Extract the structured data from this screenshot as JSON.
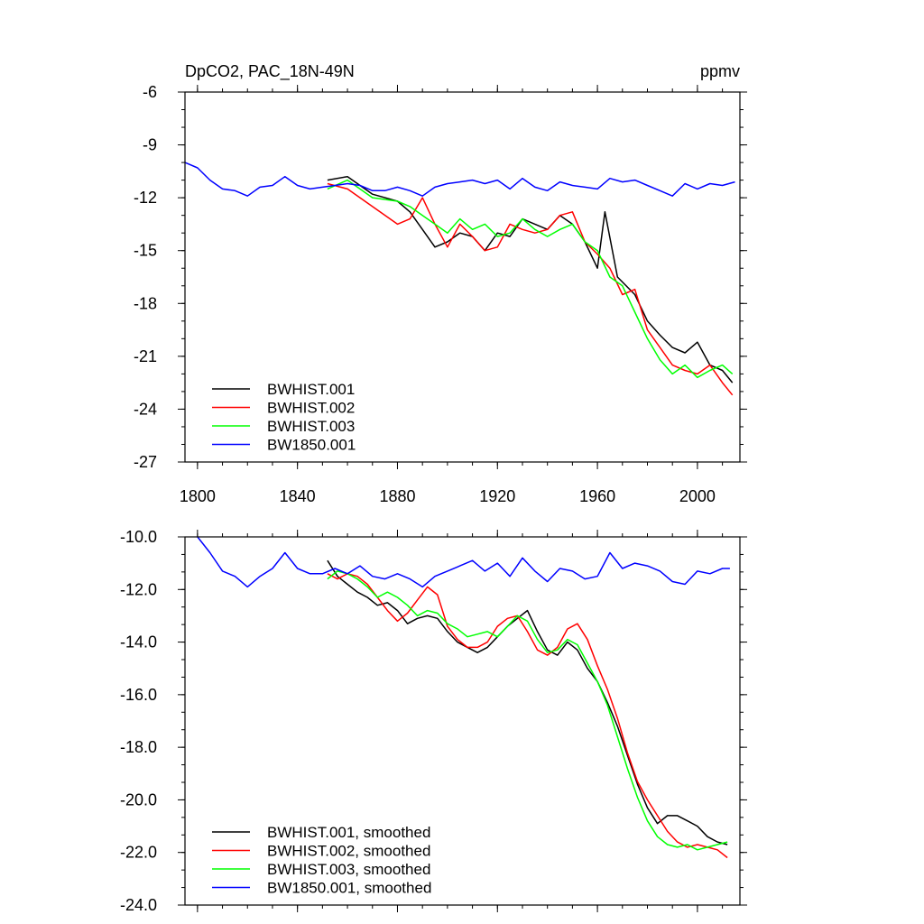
{
  "chart_data": [
    {
      "type": "line",
      "title_left": "DpCO2, PAC_18N-49N",
      "title_right": "ppmv",
      "xlabel": "",
      "ylabel": "",
      "xlim": [
        1795,
        2017
      ],
      "ylim": [
        -27,
        -6
      ],
      "x_ticks": [
        1800,
        1840,
        1880,
        1920,
        1960,
        2000
      ],
      "x_tick_labels": [
        "1800",
        "1840",
        "1880",
        "1920",
        "1960",
        "2000"
      ],
      "y_ticks": [
        -6,
        -9,
        -12,
        -15,
        -18,
        -21,
        -24,
        -27
      ],
      "y_tick_labels": [
        "-6",
        "-9",
        "-12",
        "-15",
        "-18",
        "-21",
        "-24",
        "-27"
      ],
      "legend_position": "bottom-left",
      "series": [
        {
          "name": "BWHIST.001",
          "color": "#000000",
          "x": [
            1852,
            1860,
            1870,
            1880,
            1885,
            1890,
            1895,
            1900,
            1905,
            1910,
            1915,
            1920,
            1925,
            1930,
            1935,
            1940,
            1945,
            1950,
            1955,
            1960,
            1963,
            1968,
            1975,
            1980,
            1985,
            1990,
            1995,
            2000,
            2005,
            2010,
            2014
          ],
          "y": [
            -11.0,
            -10.8,
            -11.8,
            -12.2,
            -12.8,
            -13.8,
            -14.8,
            -14.5,
            -14.0,
            -14.2,
            -15.0,
            -14.0,
            -14.2,
            -13.2,
            -13.5,
            -13.8,
            -13.0,
            -13.5,
            -14.5,
            -16.0,
            -12.8,
            -16.5,
            -17.5,
            -19.0,
            -19.8,
            -20.5,
            -20.8,
            -20.2,
            -21.5,
            -21.8,
            -22.5
          ]
        },
        {
          "name": "BWHIST.002",
          "color": "#ff0000",
          "x": [
            1852,
            1860,
            1870,
            1880,
            1885,
            1890,
            1895,
            1900,
            1905,
            1910,
            1915,
            1920,
            1925,
            1930,
            1935,
            1940,
            1945,
            1950,
            1955,
            1960,
            1965,
            1970,
            1975,
            1980,
            1985,
            1990,
            1995,
            2000,
            2005,
            2010,
            2014
          ],
          "y": [
            -11.2,
            -11.5,
            -12.5,
            -13.5,
            -13.2,
            -12.0,
            -13.5,
            -14.8,
            -13.5,
            -14.2,
            -15.0,
            -14.8,
            -13.5,
            -13.8,
            -14.0,
            -13.8,
            -13.0,
            -12.8,
            -14.5,
            -15.2,
            -16.0,
            -17.5,
            -17.2,
            -19.5,
            -20.5,
            -21.5,
            -21.8,
            -22.0,
            -21.5,
            -22.5,
            -23.2
          ]
        },
        {
          "name": "BWHIST.003",
          "color": "#00ff00",
          "x": [
            1852,
            1860,
            1870,
            1880,
            1885,
            1890,
            1895,
            1900,
            1905,
            1910,
            1915,
            1920,
            1925,
            1930,
            1935,
            1940,
            1945,
            1950,
            1955,
            1960,
            1965,
            1970,
            1975,
            1980,
            1985,
            1990,
            1995,
            2000,
            2005,
            2010,
            2014
          ],
          "y": [
            -11.5,
            -11.0,
            -12.0,
            -12.2,
            -12.5,
            -13.0,
            -13.5,
            -14.0,
            -13.2,
            -13.8,
            -13.5,
            -14.2,
            -14.0,
            -13.2,
            -13.8,
            -14.2,
            -13.8,
            -13.5,
            -14.5,
            -15.0,
            -16.5,
            -17.0,
            -18.5,
            -20.0,
            -21.2,
            -22.0,
            -21.5,
            -22.2,
            -21.8,
            -21.5,
            -22.0
          ]
        },
        {
          "name": "BW1850.001",
          "color": "#0000ff",
          "x": [
            1795,
            1800,
            1805,
            1810,
            1815,
            1820,
            1825,
            1830,
            1835,
            1840,
            1845,
            1850,
            1855,
            1860,
            1865,
            1870,
            1875,
            1880,
            1885,
            1890,
            1895,
            1900,
            1905,
            1910,
            1915,
            1920,
            1925,
            1930,
            1935,
            1940,
            1945,
            1950,
            1955,
            1960,
            1965,
            1970,
            1975,
            1980,
            1985,
            1990,
            1995,
            2000,
            2005,
            2010,
            2015
          ],
          "y": [
            -10.0,
            -10.3,
            -11.0,
            -11.5,
            -11.6,
            -11.9,
            -11.4,
            -11.3,
            -10.8,
            -11.3,
            -11.5,
            -11.4,
            -11.3,
            -11.2,
            -11.3,
            -11.6,
            -11.6,
            -11.4,
            -11.6,
            -11.9,
            -11.4,
            -11.2,
            -11.1,
            -11.0,
            -11.2,
            -11.0,
            -11.5,
            -10.9,
            -11.4,
            -11.6,
            -11.1,
            -11.3,
            -11.4,
            -11.5,
            -10.9,
            -11.1,
            -11.0,
            -11.3,
            -11.6,
            -11.9,
            -11.2,
            -11.5,
            -11.2,
            -11.3,
            -11.1
          ]
        }
      ]
    },
    {
      "type": "line",
      "title_left": "",
      "title_right": "",
      "xlabel": "",
      "ylabel": "",
      "xlim": [
        1795,
        2017
      ],
      "ylim": [
        -24.0,
        -10.0
      ],
      "x_ticks": [
        1800,
        1840,
        1880,
        1920,
        1960,
        2000
      ],
      "y_ticks": [
        -10.0,
        -12.0,
        -14.0,
        -16.0,
        -18.0,
        -20.0,
        -22.0,
        -24.0
      ],
      "y_tick_labels": [
        "-10.0",
        "-12.0",
        "-14.0",
        "-16.0",
        "-18.0",
        "-20.0",
        "-22.0",
        "-24.0"
      ],
      "legend_position": "bottom-left",
      "series": [
        {
          "name": "BWHIST.001, smoothed",
          "color": "#000000",
          "x": [
            1852,
            1856,
            1860,
            1864,
            1868,
            1872,
            1876,
            1880,
            1884,
            1888,
            1892,
            1896,
            1900,
            1904,
            1908,
            1912,
            1916,
            1920,
            1924,
            1928,
            1932,
            1936,
            1940,
            1944,
            1948,
            1952,
            1956,
            1960,
            1964,
            1968,
            1972,
            1976,
            1980,
            1984,
            1988,
            1992,
            1996,
            2000,
            2004,
            2008,
            2012
          ],
          "y": [
            -10.9,
            -11.5,
            -11.8,
            -12.1,
            -12.3,
            -12.6,
            -12.5,
            -12.8,
            -13.3,
            -13.1,
            -13.0,
            -13.1,
            -13.6,
            -14.0,
            -14.2,
            -14.4,
            -14.2,
            -13.8,
            -13.4,
            -13.1,
            -12.8,
            -13.6,
            -14.3,
            -14.5,
            -14.0,
            -14.3,
            -15.0,
            -15.5,
            -16.3,
            -17.2,
            -18.3,
            -19.4,
            -20.3,
            -20.9,
            -20.6,
            -20.6,
            -20.8,
            -21.0,
            -21.4,
            -21.6,
            -21.7
          ]
        },
        {
          "name": "BWHIST.002, smoothed",
          "color": "#ff0000",
          "x": [
            1852,
            1856,
            1860,
            1864,
            1868,
            1872,
            1876,
            1880,
            1884,
            1888,
            1892,
            1896,
            1900,
            1904,
            1908,
            1912,
            1916,
            1920,
            1924,
            1928,
            1932,
            1936,
            1940,
            1944,
            1948,
            1952,
            1956,
            1960,
            1964,
            1968,
            1972,
            1976,
            1980,
            1984,
            1988,
            1992,
            1996,
            2000,
            2004,
            2008,
            2012
          ],
          "y": [
            -11.4,
            -11.6,
            -11.4,
            -11.5,
            -11.8,
            -12.3,
            -12.8,
            -13.2,
            -12.9,
            -12.4,
            -11.9,
            -12.2,
            -13.4,
            -13.9,
            -14.2,
            -14.2,
            -14.0,
            -13.4,
            -13.1,
            -13.0,
            -13.6,
            -14.3,
            -14.5,
            -14.2,
            -13.5,
            -13.3,
            -13.9,
            -14.9,
            -15.8,
            -16.9,
            -18.2,
            -19.3,
            -20.0,
            -20.6,
            -21.2,
            -21.6,
            -21.8,
            -21.7,
            -21.8,
            -21.9,
            -22.2
          ]
        },
        {
          "name": "BWHIST.003, smoothed",
          "color": "#00ff00",
          "x": [
            1852,
            1856,
            1860,
            1864,
            1868,
            1872,
            1876,
            1880,
            1884,
            1888,
            1892,
            1896,
            1900,
            1904,
            1908,
            1912,
            1916,
            1920,
            1924,
            1928,
            1932,
            1936,
            1940,
            1944,
            1948,
            1952,
            1956,
            1960,
            1964,
            1968,
            1972,
            1976,
            1980,
            1984,
            1988,
            1992,
            1996,
            2000,
            2004,
            2008,
            2012
          ],
          "y": [
            -11.6,
            -11.3,
            -11.4,
            -11.6,
            -11.9,
            -12.3,
            -12.1,
            -12.3,
            -12.6,
            -13.0,
            -12.8,
            -12.9,
            -13.3,
            -13.5,
            -13.8,
            -13.7,
            -13.6,
            -13.8,
            -13.4,
            -13.0,
            -13.2,
            -13.9,
            -14.4,
            -14.3,
            -13.9,
            -14.1,
            -14.8,
            -15.5,
            -16.4,
            -17.6,
            -18.8,
            -19.9,
            -20.8,
            -21.4,
            -21.7,
            -21.8,
            -21.7,
            -21.9,
            -21.8,
            -21.7,
            -21.6
          ]
        },
        {
          "name": "BW1850.001, smoothed",
          "color": "#0000ff",
          "x": [
            1800,
            1805,
            1810,
            1815,
            1820,
            1825,
            1830,
            1835,
            1840,
            1845,
            1850,
            1855,
            1860,
            1865,
            1870,
            1875,
            1880,
            1885,
            1890,
            1895,
            1900,
            1905,
            1910,
            1915,
            1920,
            1925,
            1930,
            1935,
            1940,
            1945,
            1950,
            1955,
            1960,
            1965,
            1970,
            1975,
            1980,
            1985,
            1990,
            1995,
            2000,
            2005,
            2010,
            2013
          ],
          "y": [
            -10.0,
            -10.6,
            -11.3,
            -11.5,
            -11.9,
            -11.5,
            -11.2,
            -10.6,
            -11.2,
            -11.4,
            -11.4,
            -11.2,
            -11.4,
            -11.1,
            -11.5,
            -11.6,
            -11.4,
            -11.6,
            -11.9,
            -11.5,
            -11.3,
            -11.1,
            -10.9,
            -11.3,
            -11.0,
            -11.5,
            -10.8,
            -11.3,
            -11.7,
            -11.2,
            -11.3,
            -11.6,
            -11.5,
            -10.6,
            -11.2,
            -11.0,
            -11.1,
            -11.3,
            -11.7,
            -11.8,
            -11.3,
            -11.4,
            -11.2,
            -11.2
          ]
        }
      ]
    }
  ]
}
